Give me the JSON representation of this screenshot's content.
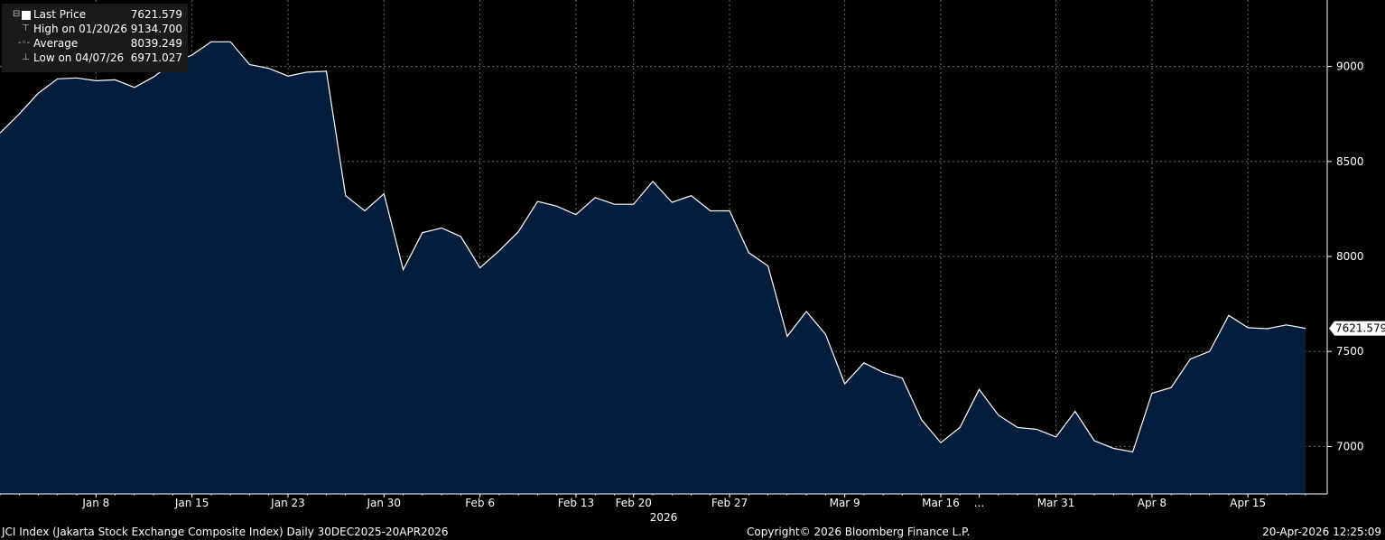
{
  "legend": {
    "last_price_label": "Last Price",
    "last_price_value": "7621.579",
    "high_label": "High on 01/20/26",
    "high_value": "9134.700",
    "average_label": "Average",
    "average_value": "8039.249",
    "low_label": "Low on 04/07/26",
    "low_value": "6971.027"
  },
  "footer": {
    "left": "JCI Index (Jakarta Stock Exchange Composite Index) Daily 30DEC2025-20APR2026",
    "center": "Copyright© 2026 Bloomberg Finance L.P.",
    "right": "20-Apr-2026 12:25:09"
  },
  "colors": {
    "background": "#000000",
    "area_fill": "#041d3c",
    "line": "#ffffff"
  },
  "chart_data": {
    "type": "area",
    "year_label": "2026",
    "ylim": [
      6750,
      9350
    ],
    "y_ticks": [
      7000,
      7500,
      8000,
      8500,
      9000
    ],
    "last_value_label": "7621.579",
    "x_ticks": [
      {
        "label": "Jan 8",
        "index": 5
      },
      {
        "label": "Jan 15",
        "index": 10
      },
      {
        "label": "Jan 23",
        "index": 15
      },
      {
        "label": "Jan 30",
        "index": 20
      },
      {
        "label": "Feb 6",
        "index": 25
      },
      {
        "label": "Feb 13",
        "index": 30
      },
      {
        "label": "Feb 20",
        "index": 33
      },
      {
        "label": "Feb 27",
        "index": 38
      },
      {
        "label": "Mar 9",
        "index": 44
      },
      {
        "label": "Mar 16",
        "index": 49
      },
      {
        "label": "...",
        "index": 51
      },
      {
        "label": "Mar 31",
        "index": 55
      },
      {
        "label": "Apr 8",
        "index": 60
      },
      {
        "label": "Apr 15",
        "index": 65
      }
    ],
    "series": [
      {
        "values": [
          8650,
          8750,
          8860,
          8935,
          8940,
          8925,
          8930,
          8890,
          8945,
          9020,
          9060,
          9130,
          9130,
          9010,
          8990,
          8950,
          8970,
          8975,
          8320,
          8240,
          8330,
          7930,
          8125,
          8150,
          8105,
          7940,
          8030,
          8130,
          8290,
          8265,
          8220,
          8310,
          8275,
          8275,
          8395,
          8285,
          8320,
          8240,
          8240,
          8020,
          7950,
          7580,
          7710,
          7590,
          7330,
          7440,
          7390,
          7360,
          7140,
          7020,
          7100,
          7300,
          7165,
          7100,
          7090,
          7050,
          7185,
          7030,
          6990,
          6971,
          7280,
          7310,
          7460,
          7500,
          7690,
          7625,
          7620,
          7640,
          7621.579
        ]
      }
    ]
  }
}
